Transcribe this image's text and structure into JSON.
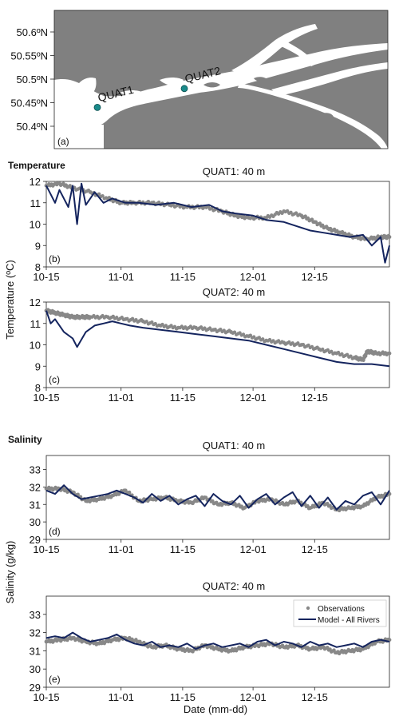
{
  "colors": {
    "land": "#808080",
    "water": "#ffffff",
    "station": "#1a8a8a",
    "observations": "#888888",
    "model": "#14245e"
  },
  "map": {
    "panel_label": "(a)",
    "lat_ticks": [
      "50.6ºN",
      "50.55ºN",
      "50.5ºN",
      "50.45ºN",
      "50.4ºN"
    ],
    "stations": [
      {
        "name": "QUAT1",
        "lat": 50.44
      },
      {
        "name": "QUAT2",
        "lat": 50.48
      }
    ]
  },
  "section_titles": {
    "temperature": "Temperature",
    "salinity": "Salinity"
  },
  "axis_labels": {
    "temperature_y": "Temperature (ºC)",
    "salinity_y": "Salinity (g/kg)",
    "x": "Date (mm-dd)"
  },
  "legend": {
    "observations": "Observations",
    "model": "Model - All Rivers"
  },
  "chart_data": [
    {
      "type": "line",
      "panel": "(b)",
      "title": "QUAT1: 40 m",
      "xlabel": "",
      "ylabel": "",
      "x_ticks": [
        "10-15",
        "11-01",
        "11-15",
        "12-01",
        "12-15"
      ],
      "y_ticks": [
        "8",
        "9",
        "10",
        "11",
        "12"
      ],
      "ylim": [
        8,
        12
      ],
      "series": [
        {
          "name": "Observations",
          "style": "markers",
          "x": [
            0,
            3,
            6,
            10,
            14,
            17,
            20,
            24,
            28,
            32,
            36,
            40,
            43,
            46,
            50,
            54,
            58,
            61,
            64,
            67,
            70,
            73,
            76,
            78
          ],
          "y": [
            11.8,
            11.9,
            11.7,
            11.5,
            11.2,
            11.0,
            11.0,
            11.0,
            10.9,
            10.8,
            10.8,
            10.6,
            10.4,
            10.3,
            10.3,
            10.6,
            10.4,
            10.1,
            9.8,
            9.6,
            9.4,
            9.3,
            9.4,
            9.4
          ]
        },
        {
          "name": "Model - All Rivers",
          "style": "line",
          "x": [
            0,
            2,
            3,
            5,
            6,
            7,
            8,
            9,
            11,
            13,
            15,
            18,
            21,
            25,
            29,
            33,
            37,
            40,
            43,
            47,
            50,
            54,
            57,
            60,
            63,
            66,
            69,
            72,
            74,
            76,
            77,
            78
          ],
          "y": [
            11.8,
            11.0,
            11.6,
            10.8,
            11.8,
            10.0,
            11.9,
            10.9,
            11.5,
            11.0,
            11.2,
            11.0,
            11.0,
            10.9,
            11.0,
            10.8,
            10.9,
            10.6,
            10.5,
            10.4,
            10.2,
            10.1,
            9.9,
            9.7,
            9.6,
            9.5,
            9.4,
            9.5,
            9.0,
            9.4,
            8.2,
            9.0
          ]
        }
      ]
    },
    {
      "type": "line",
      "panel": "(c)",
      "title": "QUAT2: 40 m",
      "xlabel": "",
      "ylabel": "",
      "x_ticks": [
        "10-15",
        "11-01",
        "11-15",
        "12-01",
        "12-15"
      ],
      "y_ticks": [
        "8",
        "9",
        "10",
        "11",
        "12"
      ],
      "ylim": [
        8,
        12
      ],
      "series": [
        {
          "name": "Observations",
          "style": "markers",
          "x": [
            0,
            2,
            4,
            6,
            8,
            10,
            14,
            18,
            22,
            26,
            30,
            34,
            38,
            42,
            46,
            50,
            54,
            58,
            62,
            66,
            70,
            72,
            73,
            75,
            78
          ],
          "y": [
            11.6,
            11.5,
            11.4,
            11.3,
            11.3,
            11.3,
            11.3,
            11.2,
            11.1,
            10.9,
            10.8,
            10.8,
            10.7,
            10.6,
            10.4,
            10.2,
            10.1,
            10.0,
            9.8,
            9.6,
            9.4,
            9.3,
            9.7,
            9.6,
            9.6
          ]
        },
        {
          "name": "Model - All Rivers",
          "style": "line",
          "x": [
            0,
            1,
            2,
            4,
            6,
            7,
            9,
            11,
            13,
            15,
            17,
            19,
            22,
            26,
            30,
            34,
            38,
            42,
            46,
            50,
            54,
            58,
            62,
            66,
            70,
            74,
            78
          ],
          "y": [
            11.6,
            11.0,
            11.2,
            10.6,
            10.3,
            9.9,
            10.6,
            10.9,
            11.0,
            11.1,
            11.0,
            10.9,
            10.8,
            10.7,
            10.6,
            10.5,
            10.4,
            10.3,
            10.2,
            10.0,
            9.8,
            9.6,
            9.4,
            9.2,
            9.1,
            9.1,
            9.0
          ]
        }
      ]
    },
    {
      "type": "line",
      "panel": "(d)",
      "title": "QUAT1: 40 m",
      "xlabel": "",
      "ylabel": "",
      "x_ticks": [
        "10-15",
        "11-01",
        "11-15",
        "12-01",
        "12-15"
      ],
      "y_ticks": [
        "29",
        "30",
        "31",
        "32",
        "33"
      ],
      "ylim": [
        29,
        33.8
      ],
      "series": [
        {
          "name": "Observations",
          "style": "markers",
          "x": [
            0,
            3,
            6,
            9,
            12,
            15,
            18,
            21,
            24,
            27,
            30,
            33,
            36,
            39,
            42,
            45,
            48,
            51,
            54,
            57,
            60,
            63,
            66,
            69,
            72,
            75,
            78
          ],
          "y": [
            31.9,
            31.9,
            31.7,
            31.2,
            31.3,
            31.5,
            31.8,
            31.2,
            31.3,
            31.4,
            31.2,
            31.1,
            31.4,
            31.0,
            31.1,
            30.8,
            31.2,
            31.3,
            31.0,
            31.2,
            30.8,
            31.1,
            30.7,
            30.8,
            30.9,
            31.4,
            31.6
          ]
        },
        {
          "name": "Model - All Rivers",
          "style": "line",
          "x": [
            0,
            2,
            4,
            6,
            8,
            10,
            12,
            14,
            16,
            18,
            20,
            22,
            24,
            26,
            28,
            30,
            32,
            34,
            36,
            38,
            40,
            42,
            44,
            46,
            48,
            50,
            52,
            54,
            56,
            58,
            60,
            62,
            64,
            66,
            68,
            70,
            72,
            74,
            76,
            78
          ],
          "y": [
            31.8,
            31.6,
            32.1,
            31.6,
            31.3,
            31.4,
            31.5,
            31.6,
            31.8,
            31.6,
            31.4,
            31.1,
            31.6,
            31.2,
            31.5,
            31.0,
            31.3,
            31.5,
            30.9,
            31.6,
            31.2,
            31.0,
            31.5,
            30.8,
            31.3,
            31.6,
            31.0,
            31.4,
            31.7,
            30.9,
            31.5,
            30.8,
            31.4,
            30.7,
            31.2,
            31.0,
            31.5,
            31.7,
            31.0,
            31.8
          ]
        }
      ]
    },
    {
      "type": "line",
      "panel": "(e)",
      "title": "QUAT2: 40 m",
      "xlabel": "",
      "ylabel": "",
      "x_ticks": [
        "10-15",
        "11-01",
        "11-15",
        "12-01",
        "12-15"
      ],
      "y_ticks": [
        "29",
        "30",
        "31",
        "32",
        "33"
      ],
      "ylim": [
        29,
        34
      ],
      "series": [
        {
          "name": "Observations",
          "style": "markers",
          "x": [
            0,
            3,
            6,
            9,
            12,
            15,
            18,
            21,
            24,
            27,
            30,
            33,
            36,
            39,
            42,
            45,
            48,
            51,
            54,
            57,
            60,
            63,
            66,
            69,
            72,
            75,
            78
          ],
          "y": [
            31.5,
            31.6,
            31.7,
            31.5,
            31.4,
            31.6,
            31.7,
            31.5,
            31.2,
            31.3,
            31.1,
            31.0,
            31.3,
            31.1,
            31.0,
            31.2,
            31.3,
            31.4,
            31.2,
            31.3,
            31.1,
            31.2,
            30.9,
            31.0,
            31.1,
            31.5,
            31.6
          ]
        },
        {
          "name": "Model - All Rivers",
          "style": "line",
          "x": [
            0,
            2,
            4,
            6,
            8,
            10,
            12,
            14,
            16,
            18,
            20,
            22,
            24,
            26,
            28,
            30,
            32,
            34,
            36,
            38,
            40,
            42,
            44,
            46,
            48,
            50,
            52,
            54,
            56,
            58,
            60,
            62,
            64,
            66,
            68,
            70,
            72,
            74,
            76,
            78
          ],
          "y": [
            31.7,
            31.8,
            31.7,
            32.0,
            31.7,
            31.5,
            31.6,
            31.7,
            31.9,
            31.6,
            31.4,
            31.3,
            31.5,
            31.2,
            31.3,
            31.2,
            31.4,
            31.1,
            31.3,
            31.4,
            31.2,
            31.3,
            31.4,
            31.2,
            31.5,
            31.6,
            31.3,
            31.5,
            31.4,
            31.2,
            31.5,
            31.3,
            31.4,
            31.2,
            31.3,
            31.4,
            31.2,
            31.5,
            31.6,
            31.5
          ]
        }
      ]
    }
  ]
}
